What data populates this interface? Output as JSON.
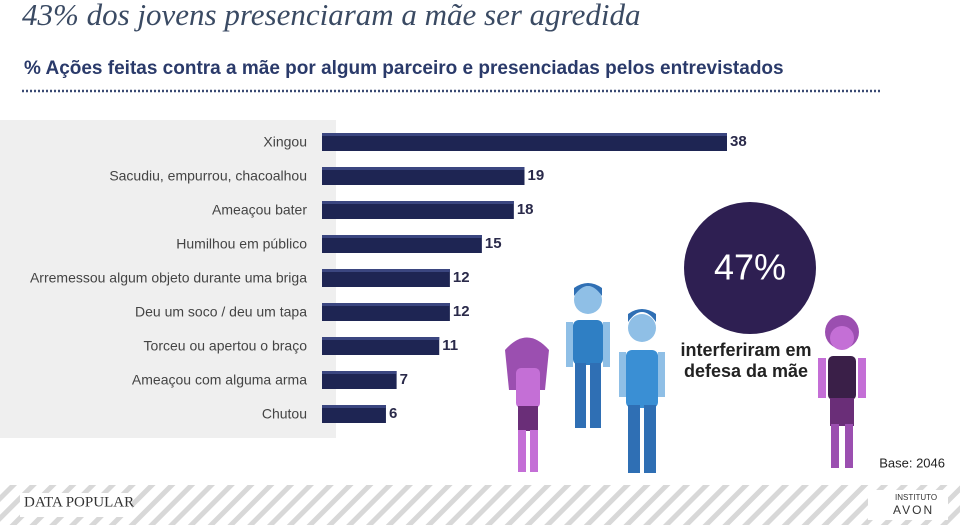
{
  "chart_data": {
    "type": "bar",
    "orientation": "horizontal",
    "title": "43% dos jovens presenciaram a mãe ser agredida",
    "subtitle": "% Ações feitas contra a mãe por algum parceiro e presenciadas pelos entrevistados",
    "categories": [
      "Xingou",
      "Sacudiu, empurrou, chacoalhou",
      "Ameaçou bater",
      "Humilhou em público",
      "Arremessou algum objeto durante uma briga",
      "Deu um soco / deu um tapa",
      "Torceu ou apertou o braço",
      "Ameaçou com alguma arma",
      "Chutou"
    ],
    "values": [
      38,
      19,
      18,
      15,
      12,
      12,
      11,
      7,
      6
    ],
    "color": "#1e2553"
  },
  "callout": {
    "value": "47%",
    "lines": [
      "interferiram em",
      "defesa da mãe"
    ]
  },
  "base": "Base: 2046",
  "logos": {
    "left": "DATA POPULAR",
    "right_top": "INSTITUTO",
    "right_bottom": "AVON"
  }
}
